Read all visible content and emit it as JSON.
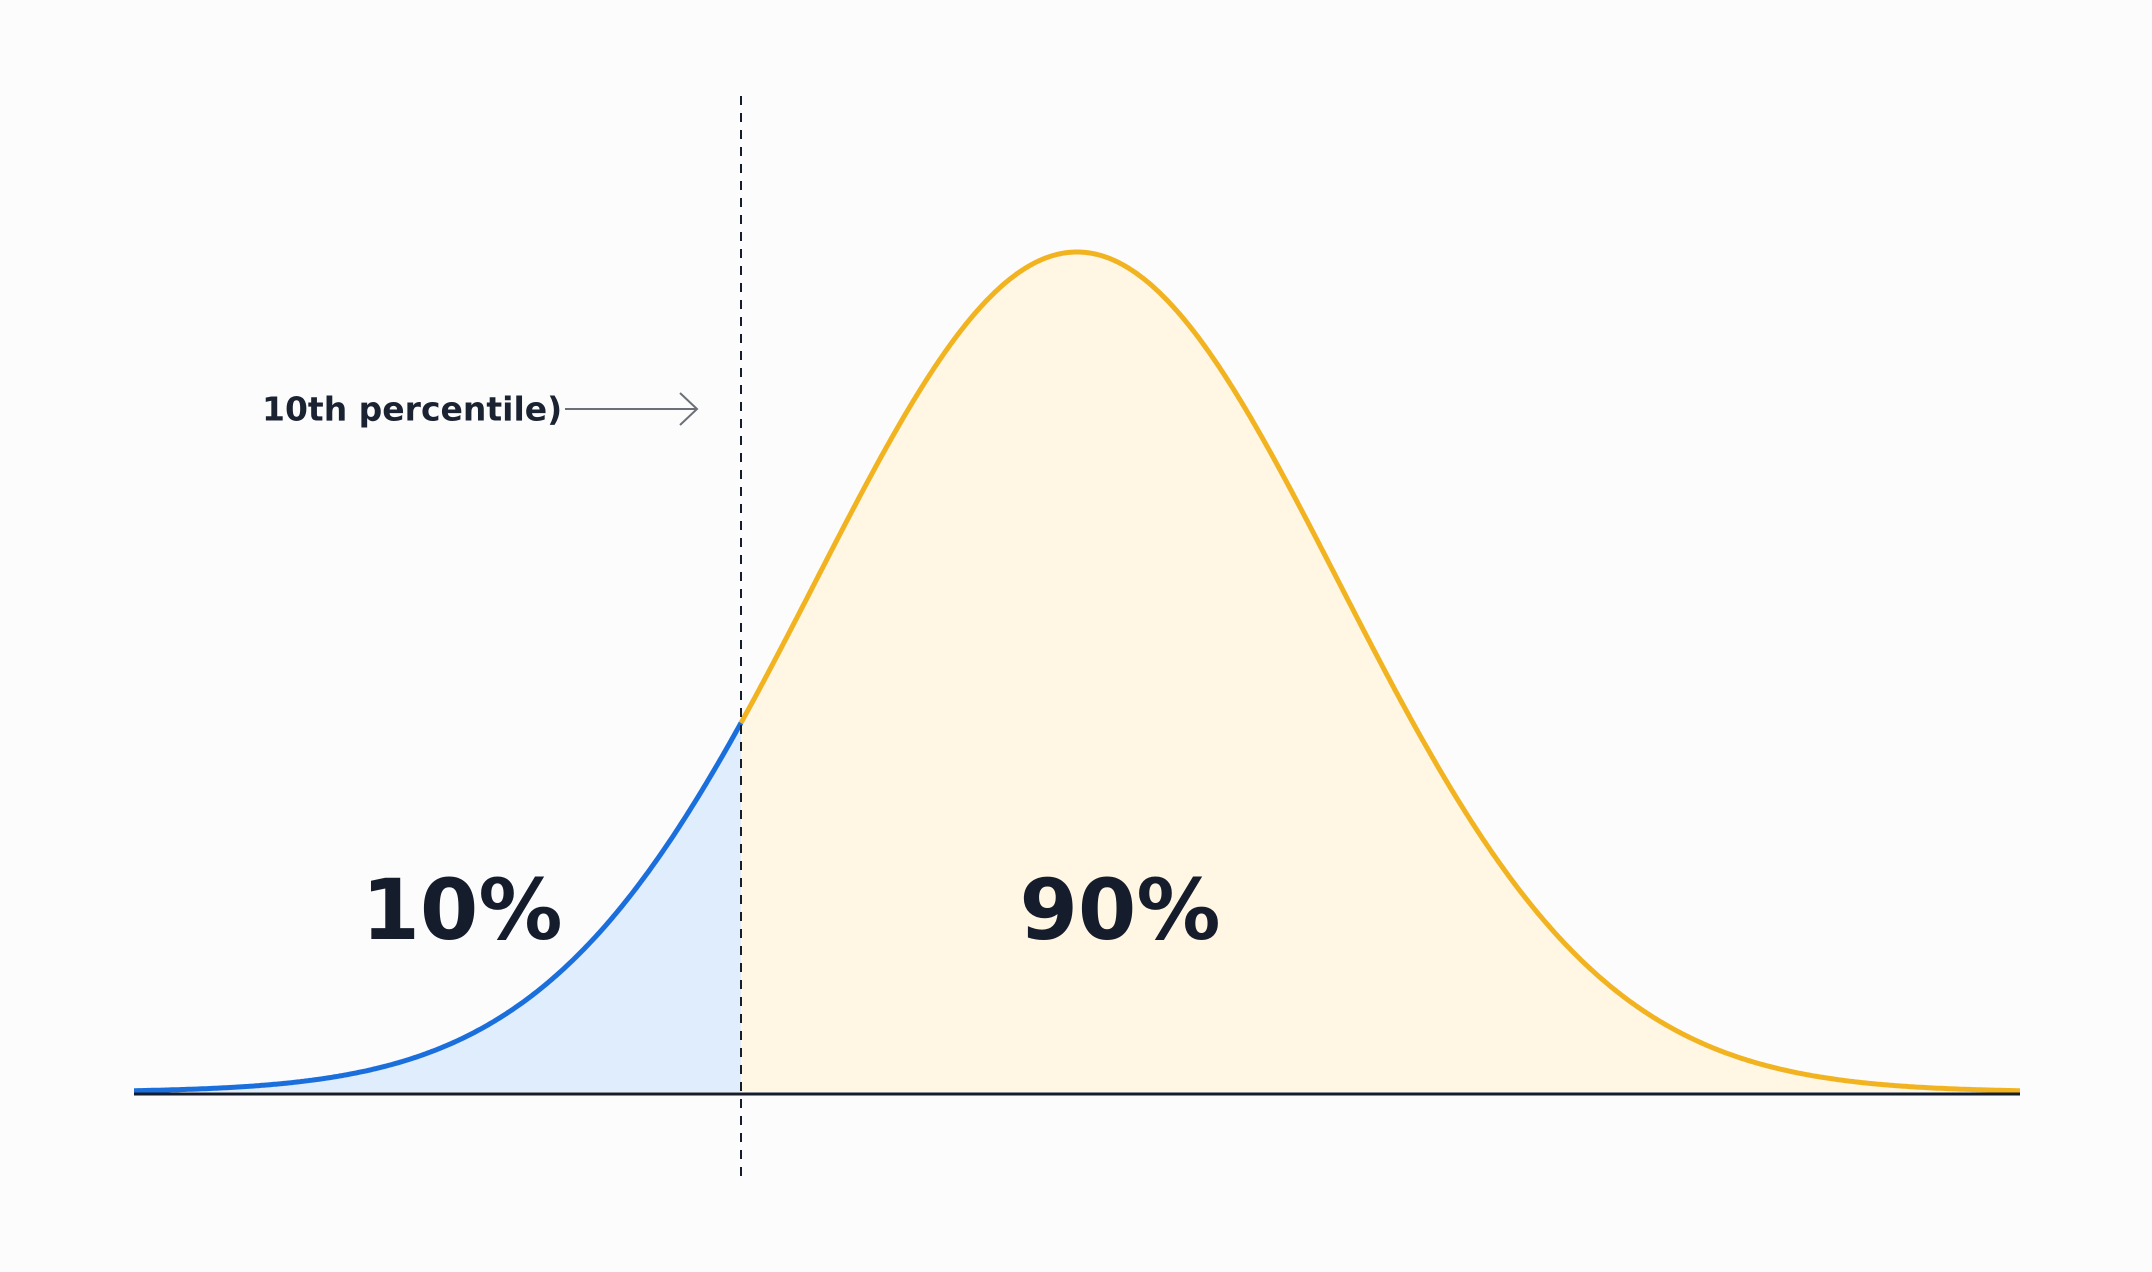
{
  "annotation": "10th percentile)",
  "regions": [
    {
      "label": "10%"
    },
    {
      "label": "90%"
    }
  ]
}
